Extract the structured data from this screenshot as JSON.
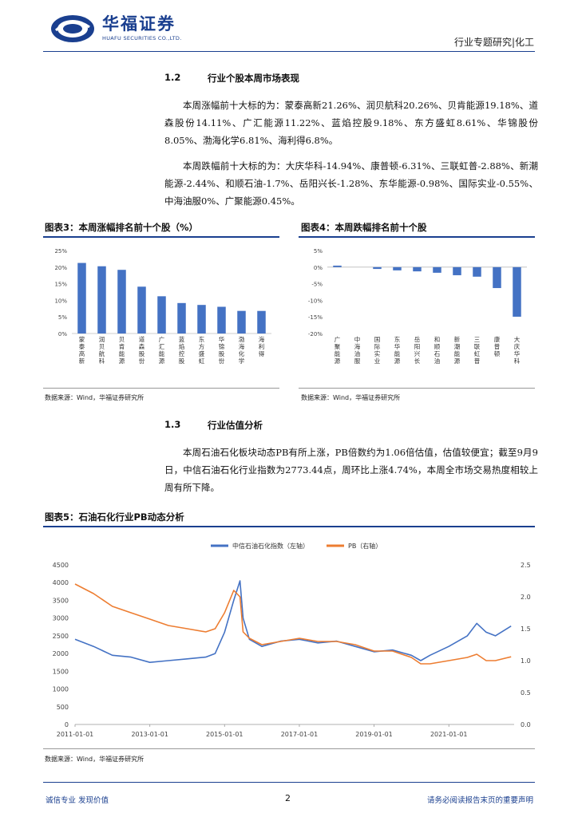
{
  "header": {
    "logo_cn": "华福证券",
    "logo_en": "HUAFU SECURITIES CO.,LTD.",
    "report_type": "行业专题研究|化工"
  },
  "section_1_2": {
    "number": "1.2",
    "title": "行业个股本周市场表现",
    "para1": "本周涨幅前十大标的为：蒙泰高新21.26%、润贝航科20.26%、贝肯能源19.18%、道森股份14.11%、广汇能源11.22%、蓝焰控股9.18%、东方盛虹8.61%、华锦股份8.05%、渤海化学6.81%、海利得6.8%。",
    "para2": "本周跌幅前十大标的为：大庆华科-14.94%、康普顿-6.31%、三联虹普-2.88%、新潮能源-2.44%、和顺石油-1.7%、岳阳兴长-1.28%、东华能源-0.98%、国际实业-0.55%、中海油服0%、广聚能源0.45%。"
  },
  "fig3": {
    "title": "图表3：本周涨幅排名前十个股（%）",
    "source": "数据来源：Wind，华福证券研究所"
  },
  "fig4": {
    "title": "图表4：本周跌幅排名前十个股",
    "source": "数据来源：Wind，华福证券研究所"
  },
  "section_1_3": {
    "number": "1.3",
    "title": "行业估值分析",
    "para": "本周石油石化板块动态PB有所上涨，PB倍数约为1.06倍估值，估值较便宜；截至9月9日，中信石油石化行业指数为2773.44点，周环比上涨4.74%，本周全市场交易热度相较上周有所下降。"
  },
  "fig5": {
    "title": "图表5：石油石化行业PB动态分析",
    "source": "数据来源：Wind，华福证券研究所"
  },
  "footer": {
    "left": "诚信专业  发现价值",
    "page": "2",
    "right": "请务必阅读报告末页的重要声明"
  },
  "colors": {
    "brand": "#1a3f8f",
    "bar": "#4472c4",
    "index_line": "#4472c4",
    "pb_line": "#ed7d31"
  },
  "chart_data": [
    {
      "type": "bar",
      "categories": [
        "蒙泰高新",
        "润贝航科",
        "贝肯能源",
        "道森股份",
        "广汇能源",
        "蓝焰控股",
        "东方盛虹",
        "华锦股份",
        "渤海化学",
        "海利得"
      ],
      "values": [
        21.26,
        20.26,
        19.18,
        14.11,
        11.22,
        9.18,
        8.61,
        8.05,
        6.81,
        6.8
      ],
      "ylim": [
        0,
        25
      ],
      "yticks": [
        "0%",
        "5%",
        "10%",
        "15%",
        "20%",
        "25%"
      ]
    },
    {
      "type": "bar",
      "categories": [
        "广聚能源",
        "中海油服",
        "国际实业",
        "东华能源",
        "岳阳兴长",
        "和顺石油",
        "新潮能源",
        "三联虹普",
        "康普顿",
        "大庆华科"
      ],
      "values": [
        0.45,
        0,
        -0.55,
        -0.98,
        -1.28,
        -1.7,
        -2.44,
        -2.88,
        -6.31,
        -14.94
      ],
      "ylim": [
        -20,
        5
      ],
      "yticks": [
        "-20%",
        "-15%",
        "-10%",
        "-5%",
        "0%",
        "5%"
      ]
    },
    {
      "type": "line",
      "series": [
        {
          "name": "中信石油石化指数（左轴）",
          "axis": "left",
          "x": [
            "2011-01",
            "2011-07",
            "2012-01",
            "2012-07",
            "2013-01",
            "2013-07",
            "2014-01",
            "2014-07",
            "2014-10",
            "2015-01",
            "2015-04",
            "2015-06",
            "2015-07",
            "2015-09",
            "2016-01",
            "2016-07",
            "2017-01",
            "2017-07",
            "2018-01",
            "2018-07",
            "2019-01",
            "2019-07",
            "2020-01",
            "2020-04",
            "2020-07",
            "2021-01",
            "2021-07",
            "2021-10",
            "2022-01",
            "2022-04",
            "2022-09"
          ],
          "values": [
            2400,
            2200,
            1950,
            1900,
            1750,
            1800,
            1850,
            1900,
            2000,
            2600,
            3500,
            4050,
            3000,
            2400,
            2200,
            2350,
            2400,
            2300,
            2350,
            2200,
            2050,
            2100,
            1950,
            1800,
            1950,
            2200,
            2500,
            2850,
            2600,
            2500,
            2773.44
          ]
        },
        {
          "name": "PB（右轴）",
          "axis": "right",
          "x": [
            "2011-01",
            "2011-07",
            "2012-01",
            "2012-07",
            "2013-01",
            "2013-07",
            "2014-01",
            "2014-07",
            "2014-10",
            "2015-01",
            "2015-04",
            "2015-06",
            "2015-07",
            "2015-09",
            "2016-01",
            "2016-07",
            "2017-01",
            "2017-07",
            "2018-01",
            "2018-07",
            "2019-01",
            "2019-07",
            "2020-01",
            "2020-04",
            "2020-07",
            "2021-01",
            "2021-07",
            "2021-10",
            "2022-01",
            "2022-04",
            "2022-09"
          ],
          "values": [
            2.2,
            2.05,
            1.85,
            1.75,
            1.65,
            1.55,
            1.5,
            1.45,
            1.5,
            1.75,
            2.1,
            2.0,
            1.45,
            1.35,
            1.25,
            1.3,
            1.35,
            1.3,
            1.3,
            1.25,
            1.15,
            1.15,
            1.05,
            0.95,
            0.95,
            1.0,
            1.05,
            1.1,
            1.0,
            1.0,
            1.06
          ]
        }
      ],
      "xticks": [
        "2011-01-01",
        "2013-01-01",
        "2015-01-01",
        "2017-01-01",
        "2019-01-01",
        "2021-01-01"
      ],
      "ylim_left": [
        0,
        4500
      ],
      "yticks_left": [
        "0",
        "500",
        "1000",
        "1500",
        "2000",
        "2500",
        "3000",
        "3500",
        "4000",
        "4500"
      ],
      "ylim_right": [
        0,
        2.5
      ],
      "yticks_right": [
        "0.0",
        "0.5",
        "1.0",
        "1.5",
        "2.0",
        "2.5"
      ]
    }
  ]
}
